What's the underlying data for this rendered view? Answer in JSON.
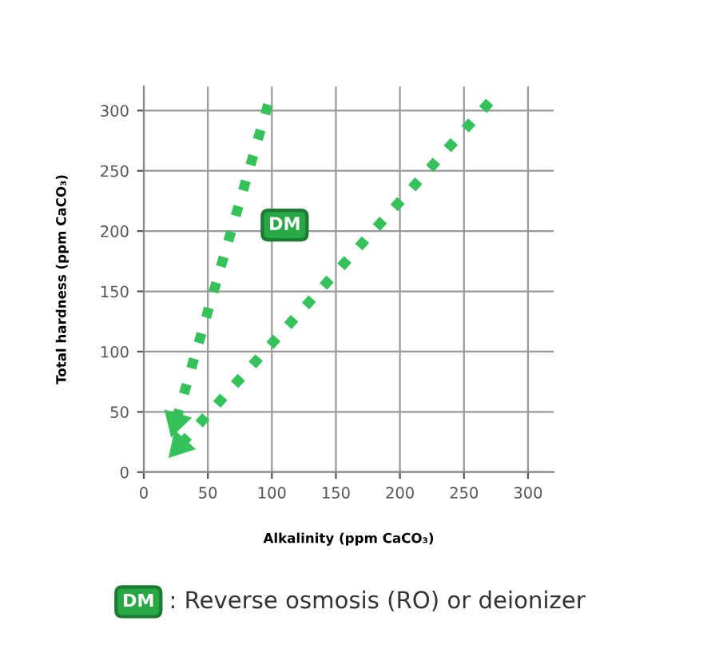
{
  "chart_data": {
    "type": "line",
    "xlabel": "Alkalinity (ppm CaCO₃)",
    "ylabel": "Total hardness (ppm CaCO₃)",
    "xlim": [
      0,
      320
    ],
    "ylim": [
      0,
      320
    ],
    "xticks": [
      0,
      50,
      100,
      150,
      200,
      250,
      300
    ],
    "yticks": [
      0,
      50,
      100,
      150,
      200,
      250,
      300
    ],
    "grid": true,
    "line_style": "dotted",
    "series": [
      {
        "color": "#35c25a",
        "x": [
          97,
          25
        ],
        "values": [
          305,
          42
        ]
      },
      {
        "color": "#35c25a",
        "x": [
          270,
          28
        ],
        "values": [
          307,
          22
        ]
      }
    ],
    "annotations": [
      {
        "text": "DM",
        "x": 110,
        "y": 205
      },
      "DM : Reverse osmosis (RO) or deionizer"
    ]
  }
}
